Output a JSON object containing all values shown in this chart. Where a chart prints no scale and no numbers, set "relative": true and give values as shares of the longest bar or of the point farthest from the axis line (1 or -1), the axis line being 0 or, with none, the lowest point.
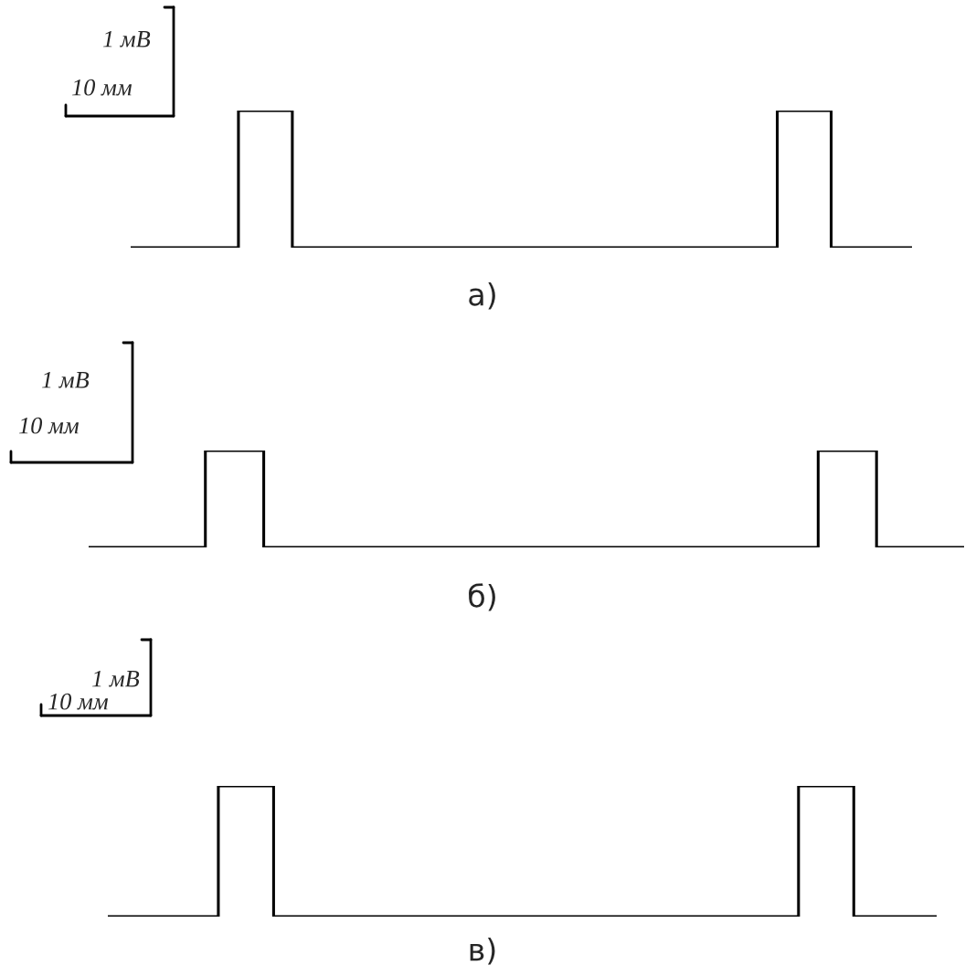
{
  "chart_data": [
    {
      "type": "step",
      "relative": true,
      "xlabel": "а)",
      "annotations": [
        "1 мВ",
        "10 мм"
      ],
      "color": "#000000",
      "categories": [
        null,
        null,
        null,
        null,
        null,
        null,
        null,
        null,
        null,
        null,
        null,
        null,
        null,
        null,
        null,
        null,
        null,
        null,
        null,
        null,
        null,
        null,
        null,
        null,
        null,
        null,
        null,
        null,
        null,
        null
      ],
      "values": [
        0,
        0,
        0,
        0,
        1,
        1,
        0,
        0,
        0,
        0,
        0,
        0,
        0,
        0,
        0,
        0,
        0,
        0,
        0,
        0,
        0,
        0,
        0,
        0,
        1,
        1,
        0,
        0,
        0,
        0
      ]
    },
    {
      "type": "step",
      "relative": true,
      "xlabel": "б)",
      "annotations": [
        "1 мВ",
        "10 мм"
      ],
      "color": "#000000",
      "categories": [
        null,
        null,
        null,
        null,
        null,
        null,
        null,
        null,
        null,
        null,
        null,
        null,
        null,
        null,
        null,
        null,
        null,
        null,
        null,
        null,
        null,
        null,
        null,
        null,
        null,
        null,
        null,
        null,
        null,
        null,
        null
      ],
      "values": [
        0,
        0,
        0,
        0,
        1,
        1,
        0,
        0,
        0,
        0,
        0,
        0,
        0,
        0,
        0,
        0,
        0,
        0,
        0,
        0,
        0,
        0,
        0,
        0,
        0,
        1,
        1,
        0,
        0,
        0,
        0
      ]
    },
    {
      "type": "step",
      "relative": true,
      "xlabel": "в)",
      "annotations": [
        "1 мВ",
        "10 мм"
      ],
      "color": "#000000",
      "categories": [
        null,
        null,
        null,
        null,
        null,
        null,
        null,
        null,
        null,
        null,
        null,
        null,
        null,
        null,
        null,
        null,
        null,
        null,
        null,
        null,
        null,
        null,
        null,
        null,
        null,
        null,
        null,
        null,
        null,
        null,
        null
      ],
      "values": [
        0,
        0,
        0,
        0,
        1,
        1,
        0,
        0,
        0,
        0,
        0,
        0,
        0,
        0,
        0,
        0,
        0,
        0,
        0,
        0,
        0,
        0,
        0,
        0,
        0,
        1,
        1,
        0,
        0,
        0,
        0
      ]
    }
  ]
}
